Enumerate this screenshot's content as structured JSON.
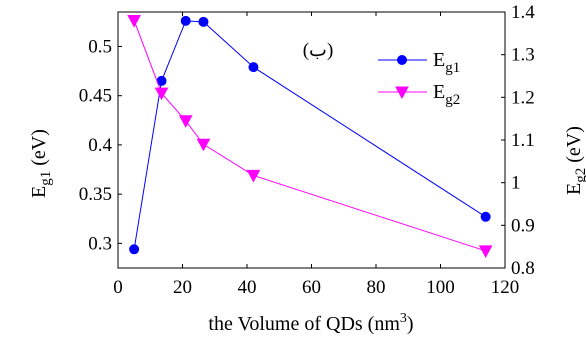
{
  "chart_data": {
    "type": "line",
    "panel_label": "(ب)",
    "xlabel": "the Volume of QDs (nm",
    "xlabel_sup": "3",
    "xlabel_end": ")",
    "ylabel_left": {
      "main": "E",
      "sub": "g1",
      "tail": " (eV)"
    },
    "ylabel_right": {
      "main": "E",
      "sub": "g2",
      "tail": " (eV)"
    },
    "xlim": [
      0,
      120
    ],
    "ylim_left": [
      0.275,
      0.535
    ],
    "ylim_right": [
      0.8,
      1.4
    ],
    "x_ticks": [
      "0",
      "20",
      "40",
      "60",
      "80",
      "100",
      "120"
    ],
    "y_left_ticks": [
      "0.3",
      "0.35",
      "0.4",
      "0.45",
      "0.5"
    ],
    "y_right_ticks": [
      "0.8",
      "0.9",
      "1",
      "1.1",
      "1.2",
      "1.3",
      "1.4"
    ],
    "grid": false,
    "legend_position": "top-right",
    "series": [
      {
        "name_main": "E",
        "name_sub": "g1",
        "axis": "left",
        "color": "#0000ff",
        "marker": "circle",
        "x": [
          5,
          13.5,
          21,
          26.5,
          42,
          114
        ],
        "y": [
          0.294,
          0.465,
          0.526,
          0.525,
          0.479,
          0.327
        ]
      },
      {
        "name_main": "E",
        "name_sub": "g2",
        "axis": "right",
        "color": "#ff00ff",
        "marker": "triangle-down",
        "x": [
          5,
          13.5,
          21,
          26.5,
          42,
          114
        ],
        "y": [
          1.38,
          1.21,
          1.145,
          1.09,
          1.017,
          0.84
        ]
      }
    ]
  }
}
